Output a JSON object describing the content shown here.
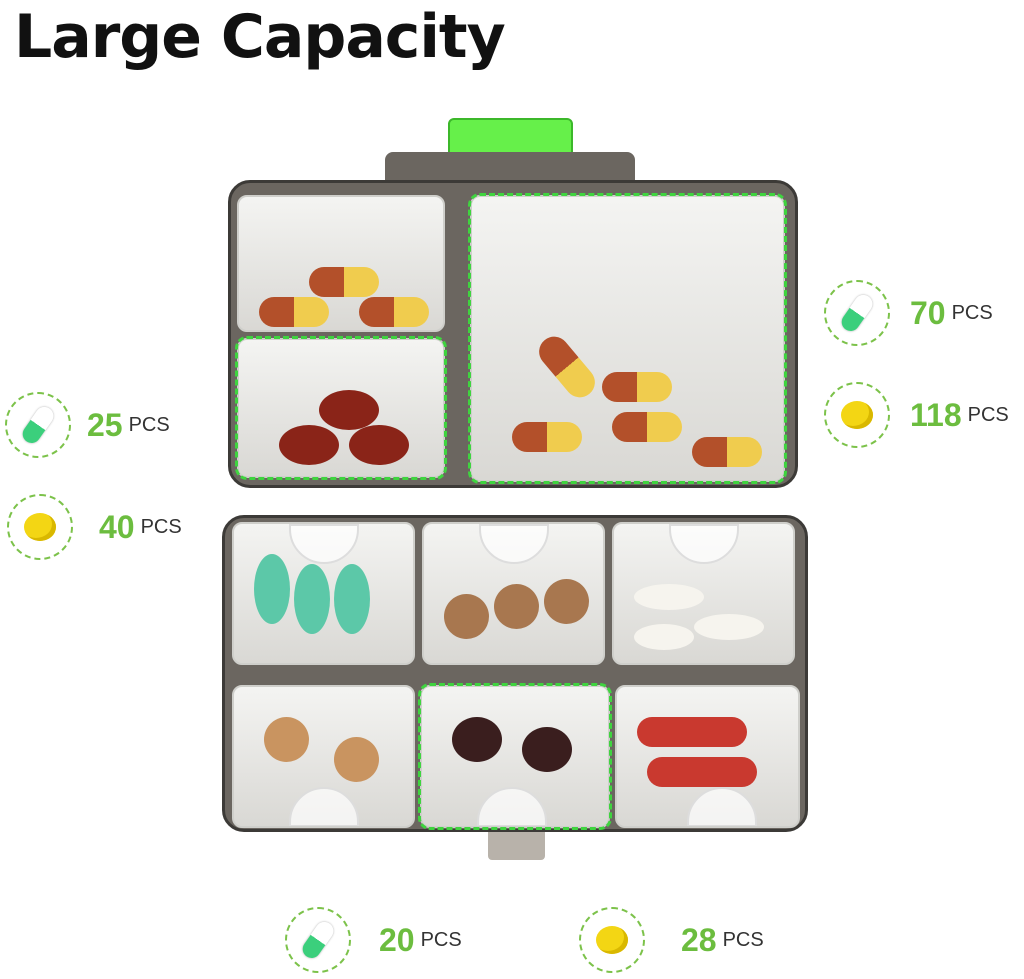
{
  "title": "Large Capacity",
  "colors": {
    "accent": "#6cbd3f",
    "dashed_outline": "#3fd43f",
    "lid_clip": "#66f04a",
    "case": "#6b6660"
  },
  "labels": [
    {
      "icon": "capsule-icon",
      "value": "25",
      "unit": "PCS"
    },
    {
      "icon": "tablet-icon",
      "value": "40",
      "unit": "PCS"
    },
    {
      "icon": "capsule-icon",
      "value": "70",
      "unit": "PCS"
    },
    {
      "icon": "tablet-icon",
      "value": "118",
      "unit": "PCS"
    },
    {
      "icon": "capsule-icon",
      "value": "20",
      "unit": "PCS"
    },
    {
      "icon": "tablet-icon",
      "value": "28",
      "unit": "PCS"
    }
  ]
}
